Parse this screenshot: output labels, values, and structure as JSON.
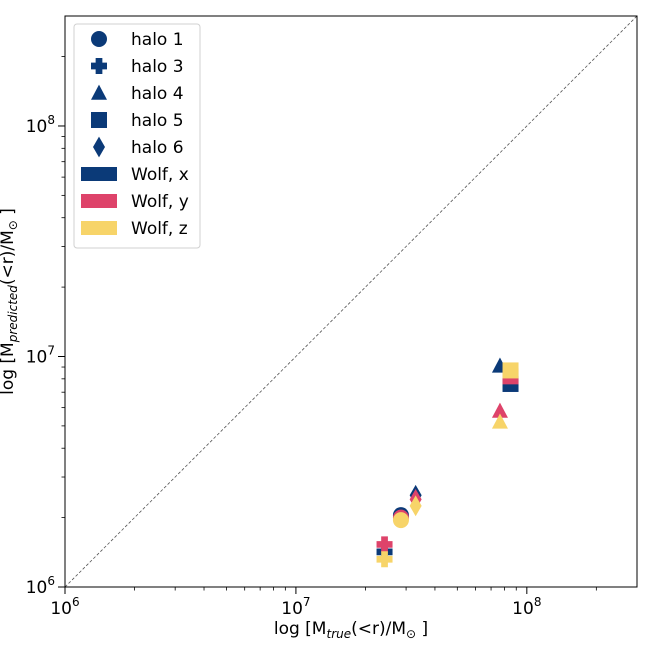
{
  "chart_data": {
    "type": "scatter",
    "xscale": "log",
    "yscale": "log",
    "xlim": [
      1000000,
      300000000
    ],
    "ylim": [
      1000000,
      300000000
    ],
    "xlabel": {
      "pre": "log [M",
      "sub": "true",
      "post": "(<r)/M",
      "sun": "⊙",
      "end": " ]"
    },
    "ylabel": {
      "pre": "log [M",
      "sub": "predicted",
      "post": "(<r)/M",
      "sun": "⊙",
      "end": " ]"
    },
    "x_ticks": [
      {
        "value": 1000000,
        "base": "10",
        "exp": "6"
      },
      {
        "value": 10000000,
        "base": "10",
        "exp": "7"
      },
      {
        "value": 100000000,
        "base": "10",
        "exp": "8"
      }
    ],
    "y_ticks": [
      {
        "value": 1000000,
        "base": "10",
        "exp": "6"
      },
      {
        "value": 10000000,
        "base": "10",
        "exp": "7"
      },
      {
        "value": 100000000,
        "base": "10",
        "exp": "8"
      }
    ],
    "reference_line": "y = x (dashed grey)",
    "grid": false,
    "legend_position": "top-left",
    "legend": [
      {
        "label": "halo 1",
        "marker": "circle",
        "color": "#0b3a78"
      },
      {
        "label": "halo 3",
        "marker": "plus",
        "color": "#0b3a78"
      },
      {
        "label": "halo 4",
        "marker": "triangle",
        "color": "#0b3a78"
      },
      {
        "label": "halo 5",
        "marker": "square",
        "color": "#0b3a78"
      },
      {
        "label": "halo 6",
        "marker": "diamond",
        "color": "#0b3a78"
      },
      {
        "label": "Wolf, x",
        "marker": "rect",
        "color": "#0b3a78"
      },
      {
        "label": "Wolf, y",
        "marker": "rect",
        "color": "#de436a"
      },
      {
        "label": "Wolf, z",
        "marker": "rect",
        "color": "#f7d469"
      }
    ],
    "colors": {
      "x": "#0b3a78",
      "y": "#de436a",
      "z": "#f7d469"
    },
    "points": [
      {
        "halo": "halo 1",
        "marker": "circle",
        "proj": "x",
        "x": 28500000,
        "y": 2050000
      },
      {
        "halo": "halo 1",
        "marker": "circle",
        "proj": "y",
        "x": 28500000,
        "y": 2000000
      },
      {
        "halo": "halo 1",
        "marker": "circle",
        "proj": "z",
        "x": 28500000,
        "y": 1950000
      },
      {
        "halo": "halo 3",
        "marker": "plus",
        "proj": "x",
        "x": 24200000,
        "y": 1420000
      },
      {
        "halo": "halo 3",
        "marker": "plus",
        "proj": "y",
        "x": 24200000,
        "y": 1530000
      },
      {
        "halo": "halo 3",
        "marker": "plus",
        "proj": "z",
        "x": 24200000,
        "y": 1320000
      },
      {
        "halo": "halo 4",
        "marker": "triangle",
        "proj": "x",
        "x": 76500000,
        "y": 9100000
      },
      {
        "halo": "halo 4",
        "marker": "triangle",
        "proj": "y",
        "x": 76500000,
        "y": 5800000
      },
      {
        "halo": "halo 4",
        "marker": "triangle",
        "proj": "z",
        "x": 76500000,
        "y": 5200000
      },
      {
        "halo": "halo 5",
        "marker": "square",
        "proj": "x",
        "x": 85000000,
        "y": 7600000
      },
      {
        "halo": "halo 5",
        "marker": "square",
        "proj": "y",
        "x": 85000000,
        "y": 8200000
      },
      {
        "halo": "halo 5",
        "marker": "square",
        "proj": "z",
        "x": 85000000,
        "y": 8700000
      },
      {
        "halo": "halo 6",
        "marker": "diamond",
        "proj": "x",
        "x": 33000000,
        "y": 2500000
      },
      {
        "halo": "halo 6",
        "marker": "diamond",
        "proj": "y",
        "x": 33000000,
        "y": 2400000
      },
      {
        "halo": "halo 6",
        "marker": "diamond",
        "proj": "z",
        "x": 33000000,
        "y": 2250000
      }
    ]
  }
}
